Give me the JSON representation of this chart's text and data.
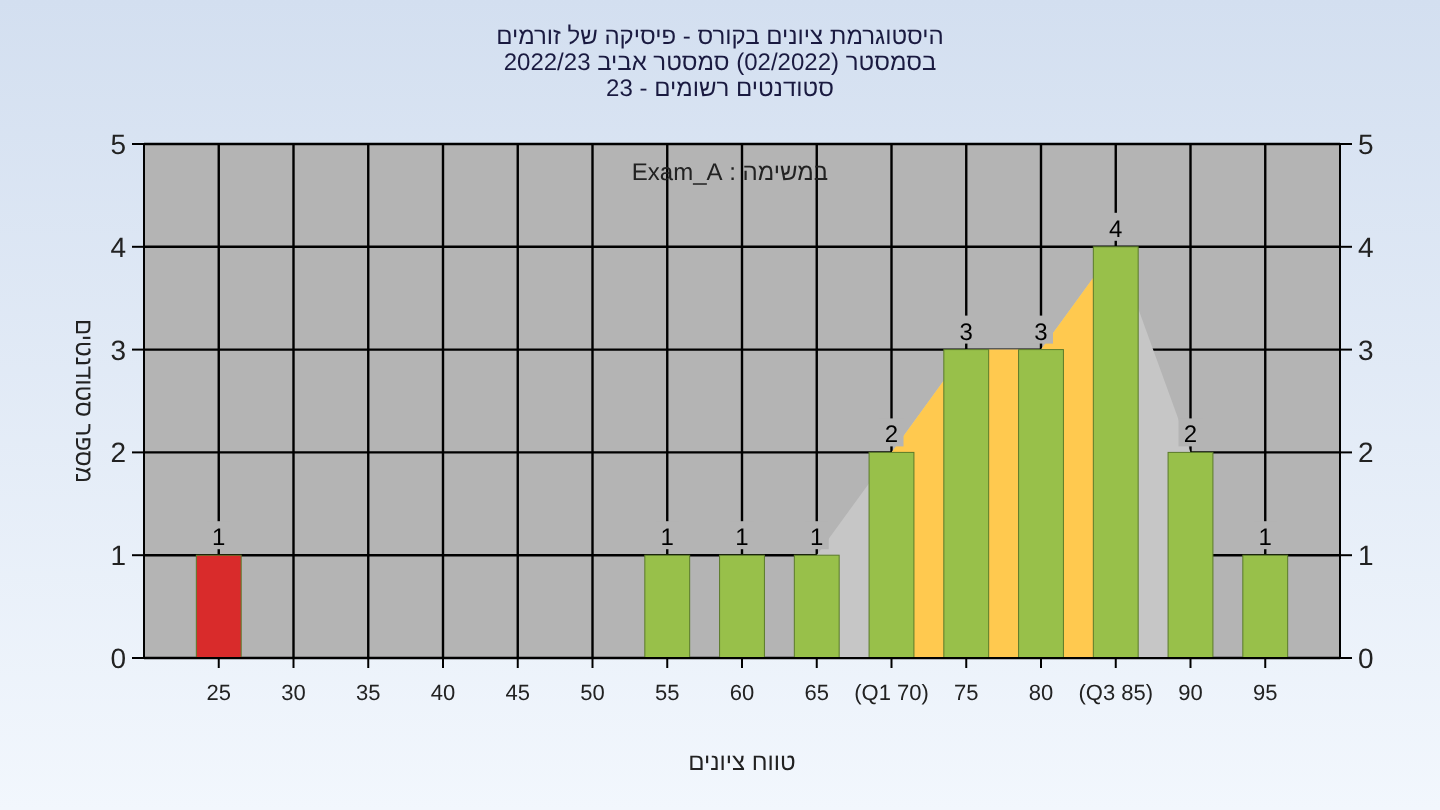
{
  "chart_data": {
    "type": "bar",
    "title": "היסטוגרמת ציונים בקורס - פיסיקה של זורמים",
    "subtitle": "בסמסטר  (02/2022)  סמסטר אביב 2022/23\nסטודנטים רשומים - 23",
    "xlabel": "טווח ציונים",
    "ylabel": "מספר סטודנטים",
    "annotations": [
      "במשימה : Exam_A"
    ],
    "x": [
      25,
      55,
      60,
      65,
      70,
      75,
      80,
      85,
      90,
      95
    ],
    "series": [
      {
        "type": "area",
        "color": "#c6c6c6",
        "x": [
          65,
          70,
          75,
          80,
          85,
          90
        ],
        "values": [
          1,
          2,
          3,
          3,
          4,
          2
        ]
      },
      {
        "type": "area",
        "color": "#ffc94f",
        "x": [
          70,
          75,
          80,
          85
        ],
        "values": [
          2,
          3,
          3,
          4
        ]
      },
      {
        "values": [
          1,
          1,
          1,
          1,
          2,
          3,
          3,
          4,
          2,
          1
        ],
        "value_labels": [
          "1",
          "1",
          "1",
          "1",
          "2",
          "3",
          "3",
          "4",
          "2",
          "1"
        ],
        "colors": [
          "#d92b2b",
          "#98c04a",
          "#98c04a",
          "#98c04a",
          "#98c04a",
          "#98c04a",
          "#98c04a",
          "#98c04a",
          "#98c04a",
          "#98c04a"
        ]
      }
    ],
    "xlim": [
      20,
      100
    ],
    "xticks": [
      25,
      30,
      35,
      40,
      45,
      50,
      55,
      60,
      65,
      {
        "value": 70,
        "label": "(Q1 70)"
      },
      75,
      80,
      {
        "value": 85,
        "label": "(Q3 85)"
      },
      90,
      95
    ],
    "ylim": [
      0,
      5
    ],
    "yticks": [
      0,
      1,
      2,
      3,
      4,
      5
    ],
    "y2lim": [
      0,
      5
    ],
    "y2ticks": [
      0,
      1,
      2,
      3,
      4,
      5
    ],
    "grid": true
  }
}
